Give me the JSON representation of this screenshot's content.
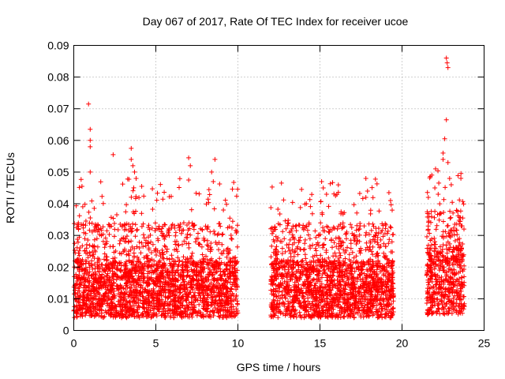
{
  "chart_data": {
    "type": "scatter",
    "title": "Day 067 of 2017, Rate Of TEC Index for receiver ucoe",
    "xlabel": "GPS time / hours",
    "ylabel": "ROTI / TECUs",
    "xlim": [
      0,
      25
    ],
    "ylim": [
      0,
      0.09
    ],
    "x_ticks": [
      "0",
      "5",
      "10",
      "15",
      "20",
      "25"
    ],
    "y_ticks": [
      "0",
      "0.01",
      "0.02",
      "0.03",
      "0.04",
      "0.05",
      "0.06",
      "0.07",
      "0.08",
      "0.09"
    ],
    "grid": true,
    "marker": "+",
    "color": "#ff0000",
    "data_segments": [
      {
        "x_start": 0.0,
        "x_end": 10.0,
        "baseline_min": 0.004,
        "baseline_max": 0.022
      },
      {
        "x_start": 12.0,
        "x_end": 19.5,
        "baseline_min": 0.004,
        "baseline_max": 0.022
      },
      {
        "x_start": 21.5,
        "x_end": 23.8,
        "baseline_min": 0.005,
        "baseline_max": 0.026
      }
    ],
    "notable_points": [
      {
        "x": 0.5,
        "y": 0.0455
      },
      {
        "x": 0.9,
        "y": 0.0715
      },
      {
        "x": 1.0,
        "y": 0.0635
      },
      {
        "x": 1.0,
        "y": 0.06
      },
      {
        "x": 1.0,
        "y": 0.058
      },
      {
        "x": 1.0,
        "y": 0.05
      },
      {
        "x": 2.4,
        "y": 0.0555
      },
      {
        "x": 3.5,
        "y": 0.0575
      },
      {
        "x": 3.5,
        "y": 0.054
      },
      {
        "x": 3.6,
        "y": 0.052
      },
      {
        "x": 3.7,
        "y": 0.05
      },
      {
        "x": 3.8,
        "y": 0.048
      },
      {
        "x": 7.0,
        "y": 0.0545
      },
      {
        "x": 7.1,
        "y": 0.052
      },
      {
        "x": 7.0,
        "y": 0.0475
      },
      {
        "x": 8.6,
        "y": 0.054
      },
      {
        "x": 8.4,
        "y": 0.05
      },
      {
        "x": 8.5,
        "y": 0.047
      },
      {
        "x": 15.1,
        "y": 0.047
      },
      {
        "x": 15.2,
        "y": 0.045
      },
      {
        "x": 15.4,
        "y": 0.043
      },
      {
        "x": 17.8,
        "y": 0.048
      },
      {
        "x": 17.9,
        "y": 0.044
      },
      {
        "x": 17.8,
        "y": 0.042
      },
      {
        "x": 19.2,
        "y": 0.0435
      },
      {
        "x": 19.3,
        "y": 0.041
      },
      {
        "x": 19.4,
        "y": 0.038
      },
      {
        "x": 21.6,
        "y": 0.042
      },
      {
        "x": 22.0,
        "y": 0.045
      },
      {
        "x": 22.2,
        "y": 0.043
      },
      {
        "x": 22.3,
        "y": 0.04
      },
      {
        "x": 22.5,
        "y": 0.054
      },
      {
        "x": 22.5,
        "y": 0.056
      },
      {
        "x": 22.7,
        "y": 0.086
      },
      {
        "x": 22.75,
        "y": 0.0845
      },
      {
        "x": 22.8,
        "y": 0.083
      },
      {
        "x": 22.7,
        "y": 0.0665
      },
      {
        "x": 22.6,
        "y": 0.0605
      },
      {
        "x": 22.8,
        "y": 0.053
      },
      {
        "x": 22.9,
        "y": 0.048
      },
      {
        "x": 23.0,
        "y": 0.046
      },
      {
        "x": 23.7,
        "y": 0.0355
      },
      {
        "x": 23.6,
        "y": 0.033
      }
    ]
  }
}
